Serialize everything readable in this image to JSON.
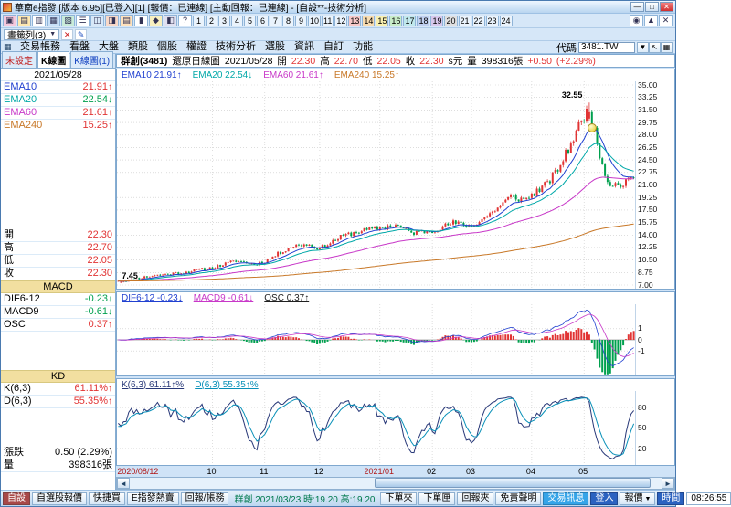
{
  "window": {
    "title": "華南e指發 [版本 6.95][已登入][1] [報價：已連線] [主動回報：已連線] - [自設**-技術分析]",
    "controls": {
      "minimize": "—",
      "maximize": "□",
      "close": "✕"
    }
  },
  "toolbar": {
    "icons": [
      {
        "name": "account-icon",
        "glyph": "▣",
        "bg": "#f6c8dc"
      },
      {
        "name": "quote-board-icon",
        "glyph": "▤",
        "bg": "#fde8b0"
      },
      {
        "name": "order-icon",
        "glyph": "▥",
        "bg": "#ffffff"
      },
      {
        "name": "chart-icon",
        "glyph": "▦",
        "bg": "#c8e0f8"
      },
      {
        "name": "matrix-icon",
        "glyph": "▧",
        "bg": "#c9ecd9"
      },
      {
        "name": "list-icon",
        "glyph": "☰",
        "bg": "#ffffff"
      },
      {
        "name": "dual-screen-icon",
        "glyph": "◫",
        "bg": "#d8e8f8"
      },
      {
        "name": "trade-icon",
        "glyph": "◨",
        "bg": "#f8d8c8"
      },
      {
        "name": "news-icon",
        "glyph": "▤",
        "bg": "#ffe2bd"
      },
      {
        "name": "kbar-icon",
        "glyph": "▮",
        "bg": "#ffffff"
      },
      {
        "name": "alert-icon",
        "glyph": "◆",
        "bg": "#f8f0c0"
      },
      {
        "name": "layout-icon",
        "glyph": "◧",
        "bg": "#e0e0f0"
      },
      {
        "name": "help-icon",
        "glyph": "?",
        "bg": "#ffffff"
      }
    ],
    "number_tabs": [
      "1",
      "2",
      "3",
      "4",
      "5",
      "6",
      "7",
      "8",
      "9",
      "10",
      "11",
      "12",
      "13",
      "14",
      "15",
      "16",
      "17",
      "18",
      "19",
      "20",
      "21",
      "22",
      "23",
      "24"
    ],
    "highlight_colors": [
      "#f8c8c8",
      "#f8dcb0",
      "#f8f0b0",
      "#c8ecc8",
      "#c0e8ec",
      "#c0d0f0",
      "#d8c8ec",
      "#e0e0e0"
    ],
    "right_icons": [
      {
        "name": "lock-icon",
        "glyph": "◉",
        "bg": "#ffffff"
      },
      {
        "name": "pin-icon",
        "glyph": "▲",
        "bg": "#ffffff"
      },
      {
        "name": "close-panel-icon",
        "glyph": "✕",
        "bg": "#ffffff"
      }
    ]
  },
  "bookmark_bar": {
    "label": "畫籤列(3)",
    "dropdown_arrow": "▼",
    "icons": [
      {
        "name": "delete-bookmark-icon",
        "glyph": "✕",
        "color": "#cc2020"
      },
      {
        "name": "edit-bookmark-icon",
        "glyph": "✎",
        "color": "#2050c0"
      }
    ]
  },
  "menu_bar": {
    "leading_icon": "▦",
    "items": [
      "交易帳務",
      "看盤",
      "大盤",
      "類股",
      "個股",
      "權證",
      "技術分析",
      "選股",
      "資訊",
      "自訂",
      "功能"
    ],
    "code_label": "代碼",
    "code_value": "3481.TW",
    "trailing_icons": [
      {
        "name": "code-dropdown-icon",
        "glyph": "▼"
      },
      {
        "name": "cursor-icon",
        "glyph": "↖"
      },
      {
        "name": "grid-view-icon",
        "glyph": "▦"
      }
    ]
  },
  "sidebar": {
    "tabs": [
      {
        "label": "未設定",
        "color": "#c02020",
        "active": false
      },
      {
        "label": "K線圖",
        "color": "#000000",
        "active": true
      },
      {
        "label": "K線圖(1)",
        "color": "#1040c0",
        "active": false
      }
    ],
    "date": "2021/05/28",
    "ema_rows": [
      {
        "label": "EMA10",
        "label_color": "#2040d0",
        "value": "21.91",
        "arrow": "↑",
        "dir": "up"
      },
      {
        "label": "EMA20",
        "label_color": "#00a8a8",
        "value": "22.54",
        "arrow": "↓",
        "dir": "down"
      },
      {
        "label": "EMA60",
        "label_color": "#c838c8",
        "value": "21.61",
        "arrow": "↑",
        "dir": "up"
      },
      {
        "label": "EMA240",
        "label_color": "#c87828",
        "value": "15.25",
        "arrow": "↑",
        "dir": "up"
      }
    ],
    "ohlc_rows": [
      {
        "label": "開",
        "value": "22.30",
        "dir": "up"
      },
      {
        "label": "高",
        "value": "22.70",
        "dir": "up"
      },
      {
        "label": "低",
        "value": "22.05",
        "dir": "up"
      },
      {
        "label": "收",
        "value": "22.30",
        "dir": "up"
      }
    ],
    "macd_header": "MACD",
    "macd_rows": [
      {
        "label": "DIF6-12",
        "value": "-0.23",
        "arrow": "↓",
        "dir": "down"
      },
      {
        "label": "MACD9",
        "value": "-0.61",
        "arrow": "↓",
        "dir": "down"
      },
      {
        "label": "OSC",
        "value": "0.37",
        "arrow": "↑",
        "dir": "up"
      }
    ],
    "kd_header": "KD",
    "kd_rows": [
      {
        "label": "K(6,3)",
        "value": "61.11%",
        "arrow": "↑",
        "dir": "up"
      },
      {
        "label": "D(6,3)",
        "value": "55.35%",
        "arrow": "↑",
        "dir": "up"
      }
    ],
    "change_label": "漲跌",
    "change_value": "0.50 (2.29%)",
    "volume_label": "量",
    "volume_value": "398316張"
  },
  "chart": {
    "header": {
      "name": "群創(3481)",
      "type": "還原日線圖",
      "date": "2021/05/28",
      "open_label": "開",
      "open": "22.30",
      "high_label": "高",
      "high": "22.70",
      "low_label": "低",
      "low": "22.05",
      "close_label": "收",
      "close": "22.30",
      "unit": "s元",
      "volume_label": "量",
      "volume": "398316張",
      "change": "+0.50",
      "change_pct": "(+2.29%)"
    },
    "price_legend": [
      {
        "text": "EMA10 21.91↑",
        "color": "#2040d0"
      },
      {
        "text": "EMA20 22.54↓",
        "color": "#00a8a8"
      },
      {
        "text": "EMA60 21.61↑",
        "color": "#c838c8"
      },
      {
        "text": "EMA240 15.25↑",
        "color": "#c87828"
      }
    ],
    "macd_legend": [
      {
        "text": "DIF6-12 -0.23↓",
        "color": "#2040d0"
      },
      {
        "text": "MACD9 -0.61↓",
        "color": "#c838c8"
      },
      {
        "text": "OSC 0.37↑",
        "color": "#202020"
      }
    ],
    "kd_legend": [
      {
        "text": "K(6,3) 61.11↑%",
        "color": "#283878"
      },
      {
        "text": "D(6,3) 55.35↑%",
        "color": "#0890b8"
      }
    ],
    "peak_label": "32.55",
    "low_label": "7.45",
    "scroll": {
      "left": "◄",
      "right": "►"
    }
  },
  "chart_data": {
    "type": "candlestick",
    "symbol": "3481.TW",
    "count": 198,
    "ylim": [
      7.0,
      35.0
    ],
    "y_ticks": [
      35.0,
      33.25,
      31.5,
      29.75,
      28.0,
      26.25,
      24.5,
      22.75,
      21.0,
      19.25,
      17.5,
      15.75,
      14.0,
      12.25,
      10.5,
      8.75,
      7.0
    ],
    "price_anchors": [
      [
        0,
        7.45
      ],
      [
        13,
        8.3
      ],
      [
        25,
        8.75
      ],
      [
        36,
        9.4
      ],
      [
        45,
        10.4
      ],
      [
        52,
        9.9
      ],
      [
        56,
        10.3
      ],
      [
        66,
        12.4
      ],
      [
        72,
        12.7
      ],
      [
        77,
        12.1
      ],
      [
        86,
        13.9
      ],
      [
        93,
        14.6
      ],
      [
        100,
        15.0
      ],
      [
        106,
        15.4
      ],
      [
        112,
        14.3
      ],
      [
        120,
        14.6
      ],
      [
        128,
        15.7
      ],
      [
        135,
        15.2
      ],
      [
        143,
        17.2
      ],
      [
        150,
        19.4
      ],
      [
        155,
        18.9
      ],
      [
        158,
        19.6
      ],
      [
        164,
        21.2
      ],
      [
        168,
        23.2
      ],
      [
        172,
        26.0
      ],
      [
        176,
        29.2
      ],
      [
        180,
        31.9
      ],
      [
        182,
        28.3
      ],
      [
        184,
        25.2
      ],
      [
        186,
        22.8
      ],
      [
        188,
        20.8
      ],
      [
        190,
        21.6
      ],
      [
        192,
        20.9
      ],
      [
        194,
        21.6
      ],
      [
        197,
        22.3
      ]
    ],
    "peak": {
      "index": 180,
      "price": 32.55
    },
    "first_low": {
      "index": 0,
      "price": 7.45
    },
    "month_ticks": [
      [
        0,
        "2020/08/12"
      ],
      [
        36,
        "10"
      ],
      [
        56,
        "11"
      ],
      [
        77,
        "12"
      ],
      [
        100,
        "2021/01"
      ],
      [
        120,
        "02"
      ],
      [
        135,
        "03"
      ],
      [
        158,
        "04"
      ],
      [
        178,
        "05"
      ]
    ],
    "indicators": {
      "ema_periods": [
        10,
        20,
        60,
        240
      ],
      "macd": {
        "fast": 6,
        "slow": 12,
        "signal": 9,
        "ticks": [
          1,
          0,
          -1
        ],
        "range": [
          -3.2,
          3.2
        ]
      },
      "kd": {
        "period": 6,
        "smooth": 3,
        "ticks": [
          80,
          50,
          20
        ],
        "range": [
          0,
          100
        ]
      }
    },
    "last": {
      "open": 22.3,
      "high": 22.7,
      "low": 22.05,
      "close": 22.3,
      "change": 0.5,
      "change_pct": 2.29,
      "volume_lots": 398316
    }
  },
  "status_bar": {
    "left_tabs": [
      {
        "label": "自設",
        "kind": "maroon"
      },
      {
        "label": "自選股報價",
        "kind": "tab"
      },
      {
        "label": "快捷買",
        "kind": "tab"
      },
      {
        "label": "E指發熱賣",
        "kind": "tab"
      },
      {
        "label": "回報/帳務",
        "kind": "tab"
      }
    ],
    "ticker": "群創 2021/03/23 時:19.20 高:19.20",
    "right_tabs": [
      {
        "label": "下單夾",
        "kind": "tab"
      },
      {
        "label": "下單匣",
        "kind": "tab"
      },
      {
        "label": "回報夾",
        "kind": "tab"
      },
      {
        "label": "免責聲明",
        "kind": "tab"
      },
      {
        "label": "交易訊息",
        "kind": "azure"
      },
      {
        "label": "登入",
        "kind": "blue"
      },
      {
        "label": "報價",
        "kind": "tab",
        "arrow": "▼"
      },
      {
        "label": "時間",
        "kind": "blue"
      }
    ],
    "time": "08:26:55"
  },
  "colors": {
    "up": "#e13434",
    "down": "#00a04e",
    "ema10": "#2040d0",
    "ema20": "#00a8a8",
    "ema60": "#c838c8",
    "ema240": "#c87828",
    "grid": "#c9c9c9",
    "k_line": "#283878",
    "d_line": "#0890b8",
    "marker": "#f2d024"
  }
}
